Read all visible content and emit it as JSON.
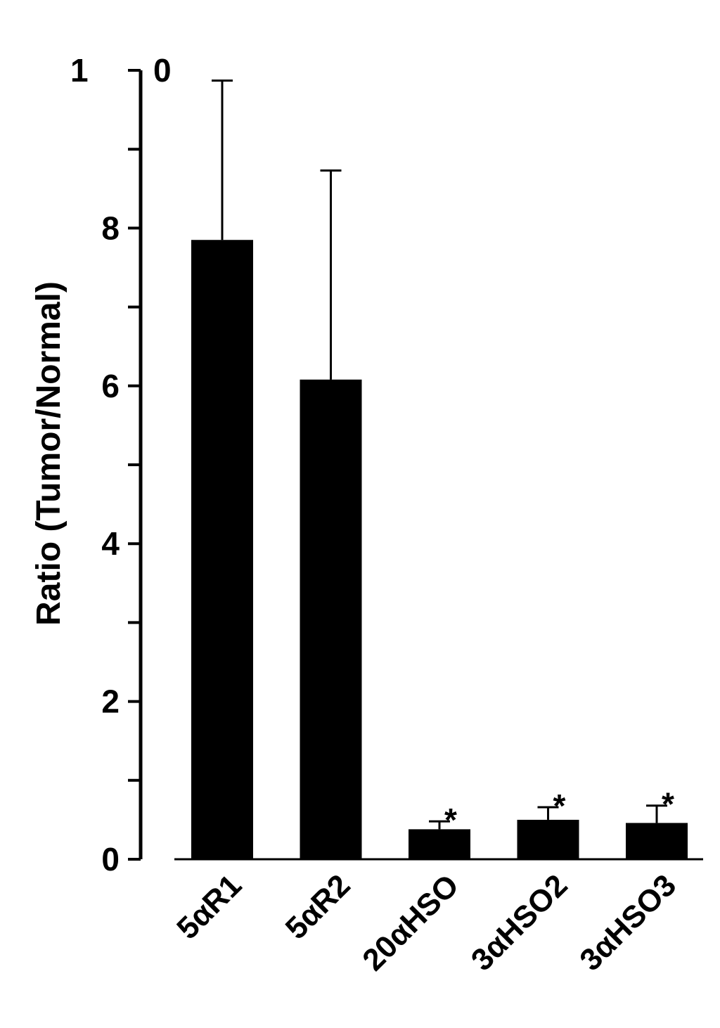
{
  "chart_data": {
    "type": "bar",
    "ylabel": "Ratio (Tumor/Normal)",
    "xlabel": "",
    "ylim": [
      0,
      10
    ],
    "y_ticks": [
      {
        "value": 0,
        "label": "0"
      },
      {
        "value": 2,
        "label": "2"
      },
      {
        "value": 4,
        "label": "4"
      },
      {
        "value": 6,
        "label": "6"
      },
      {
        "value": 8,
        "label": "8"
      },
      {
        "value": 10,
        "label": "1 0"
      }
    ],
    "categories": [
      "5αR1",
      "5αR2",
      "20αHSO",
      "3αHSO2",
      "3αHSO3"
    ],
    "values": [
      7.85,
      6.08,
      0.38,
      0.5,
      0.46
    ],
    "errors": [
      2.02,
      2.65,
      0.1,
      0.16,
      0.22
    ],
    "annotations": [
      "",
      "",
      "*",
      "*",
      "*"
    ],
    "bar_color": "#000000",
    "grid": false
  }
}
